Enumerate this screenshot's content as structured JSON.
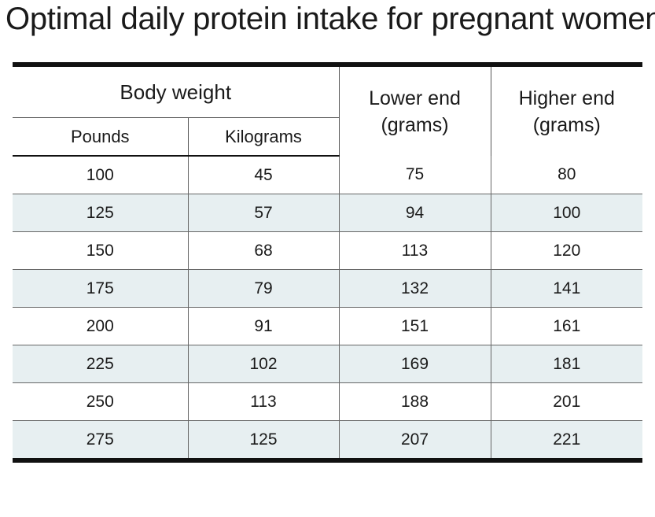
{
  "title": "Optimal daily protein intake for pregnant women",
  "headers": {
    "body_weight": "Body weight",
    "pounds": "Pounds",
    "kilograms": "Kilograms",
    "lower_end": [
      "Lower end",
      "(grams)"
    ],
    "higher_end": [
      "Higher end",
      "(grams)"
    ]
  },
  "rows": [
    [
      "100",
      "45",
      "75",
      "80"
    ],
    [
      "125",
      "57",
      "94",
      "100"
    ],
    [
      "150",
      "68",
      "113",
      "120"
    ],
    [
      "175",
      "79",
      "132",
      "141"
    ],
    [
      "200",
      "91",
      "151",
      "161"
    ],
    [
      "225",
      "102",
      "169",
      "181"
    ],
    [
      "250",
      "113",
      "188",
      "201"
    ],
    [
      "275",
      "125",
      "207",
      "221"
    ]
  ],
  "colors": {
    "stripe": "#e7eff1",
    "rule": "#111111"
  }
}
